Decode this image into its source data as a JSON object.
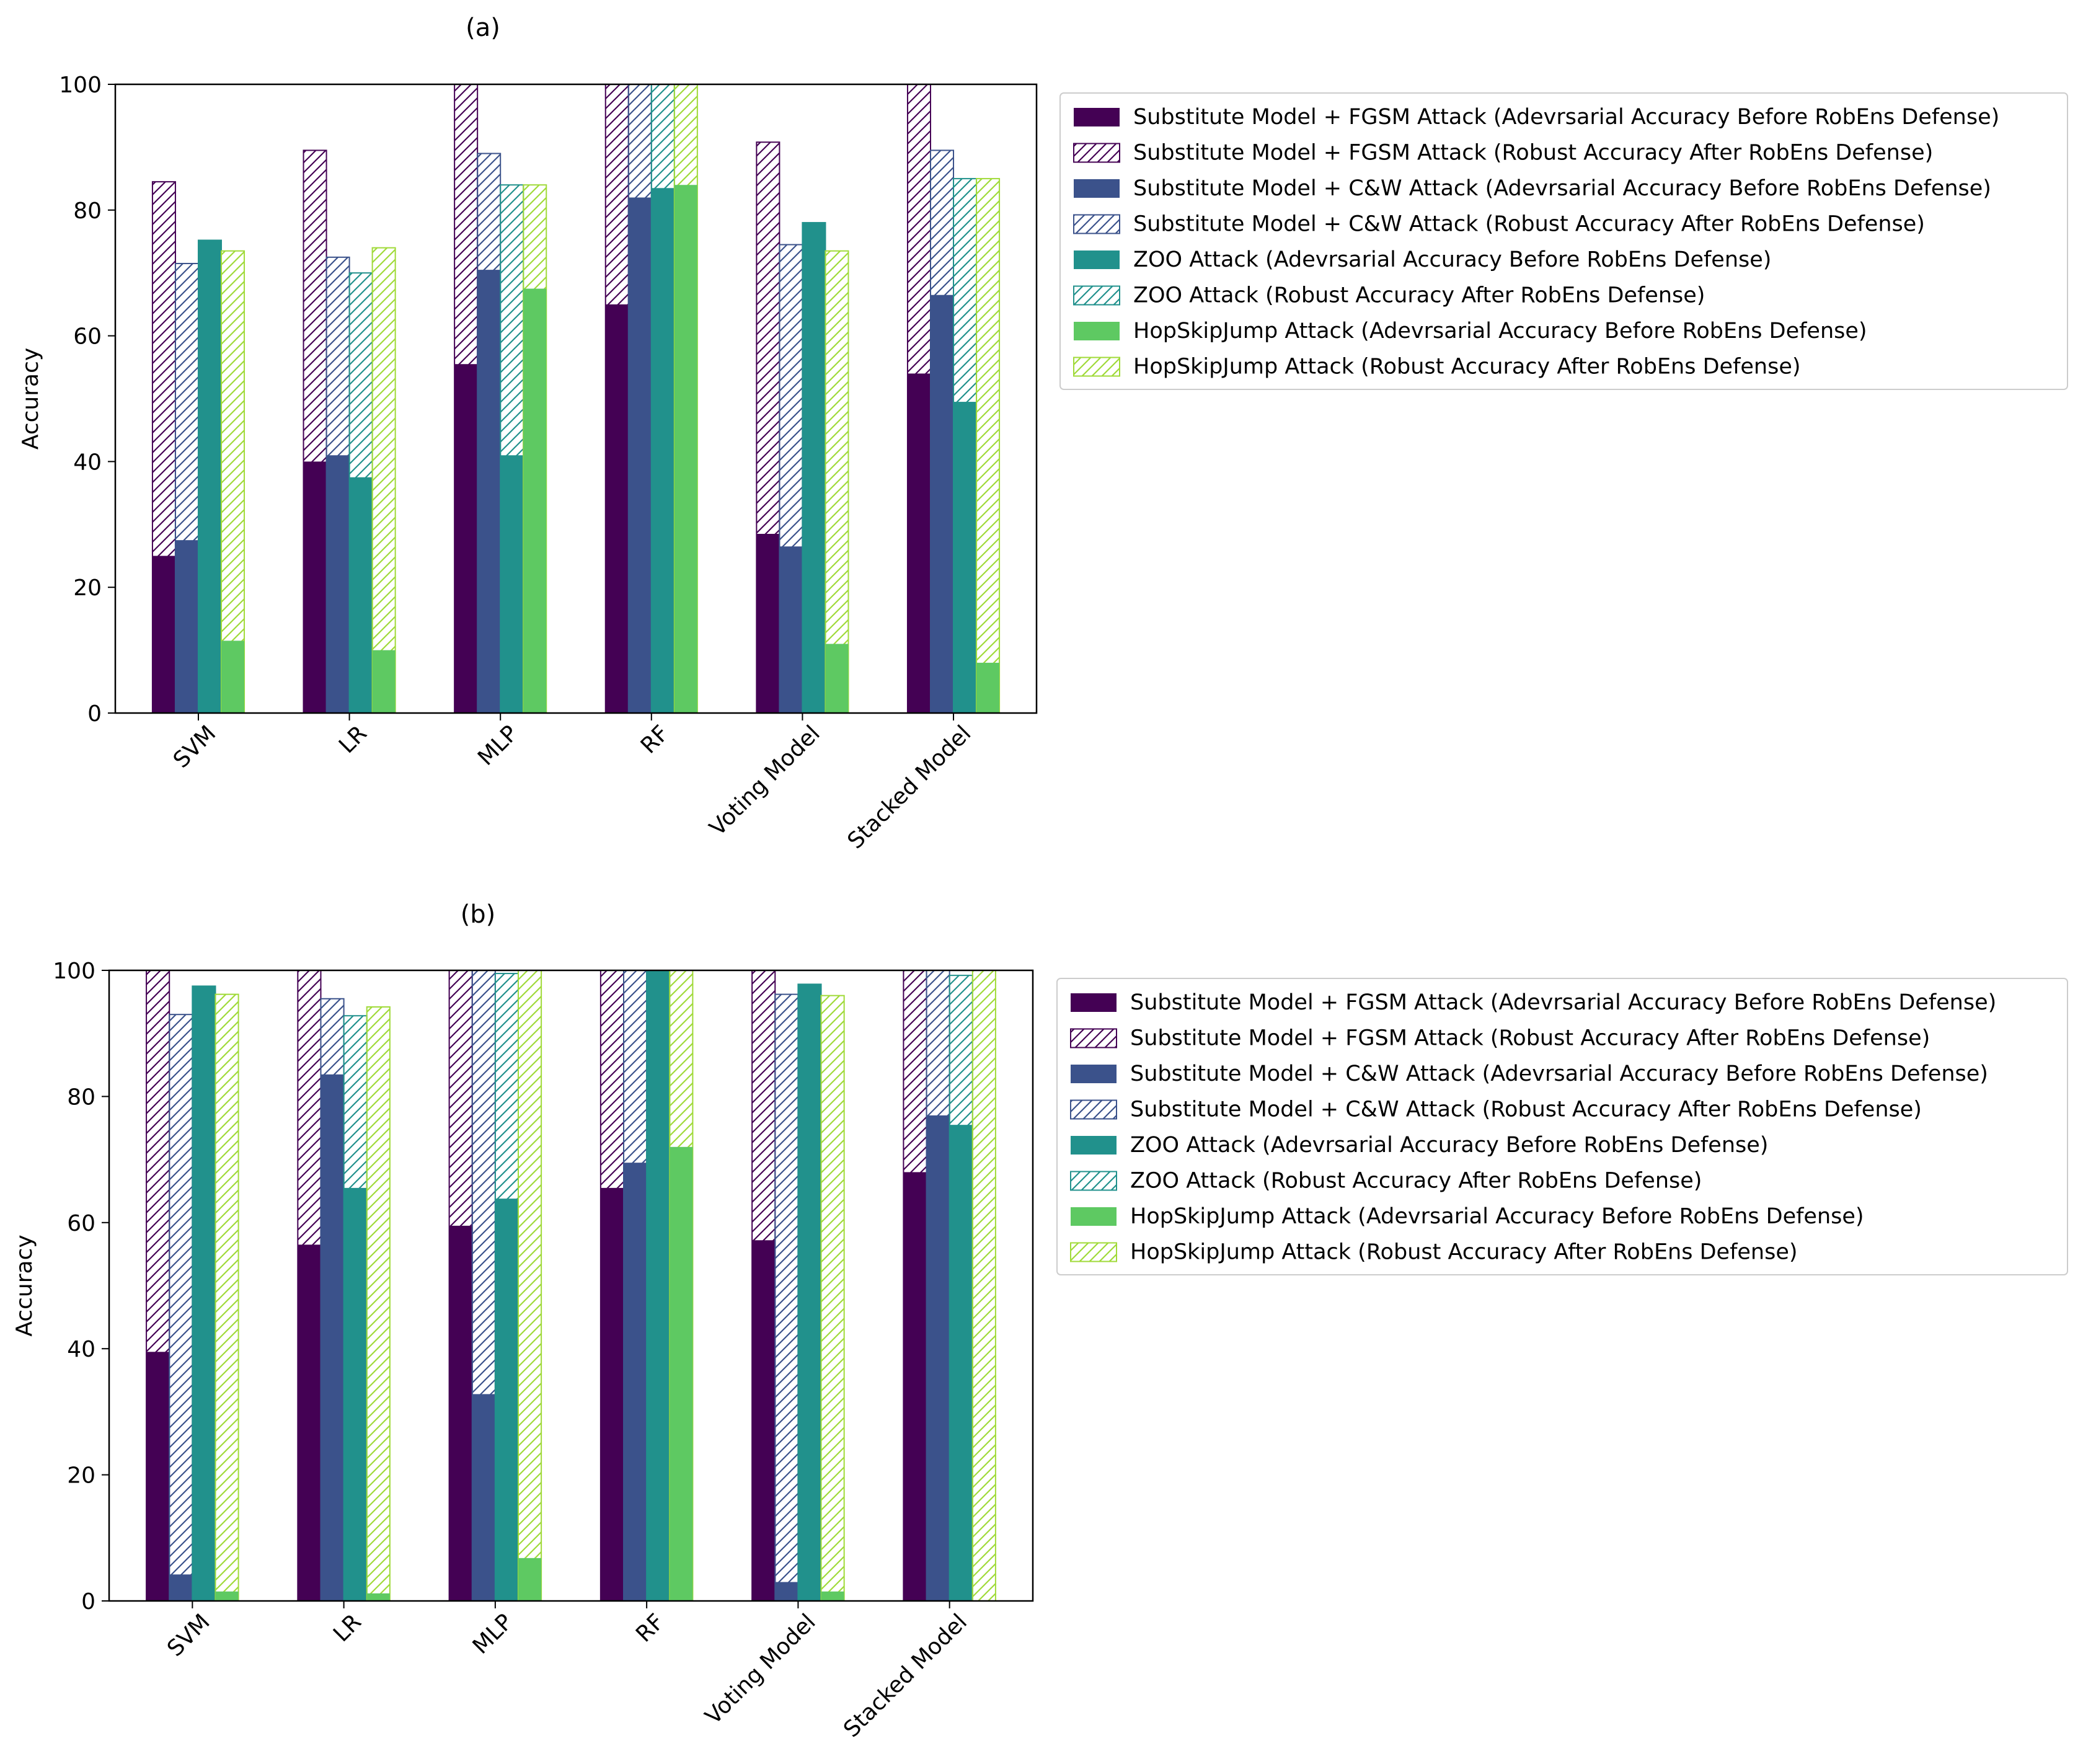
{
  "colors": {
    "fgsm": "#440154",
    "cw": "#3b528b",
    "zoo": "#21918c",
    "hsj": "#5ec962",
    "hatch_hsj": "#a0da39"
  },
  "legend": [
    "Substitute Model + FGSM Attack (Adevrsarial Accuracy Before RobEns Defense)",
    "Substitute Model + FGSM Attack (Robust Accuracy After RobEns Defense)",
    "Substitute Model + C&W Attack (Adevrsarial Accuracy Before RobEns Defense)",
    "Substitute Model + C&W Attack (Robust Accuracy After RobEns Defense)",
    "ZOO Attack (Adevrsarial Accuracy Before RobEns Defense)",
    "ZOO Attack (Robust Accuracy After RobEns Defense)",
    "HopSkipJump Attack (Adevrsarial Accuracy Before RobEns Defense)",
    "HopSkipJump Attack (Robust Accuracy After RobEns Defense)"
  ],
  "chart_data": [
    {
      "type": "bar",
      "title": "(a)",
      "ylabel": "Accuracy",
      "xlabel": "",
      "ylim": [
        0,
        100
      ],
      "yticks": [
        "0",
        "20",
        "40",
        "60",
        "80",
        "100"
      ],
      "categories": [
        "SVM",
        "LR",
        "MLP",
        "RF",
        "Voting Model",
        "Stacked Model"
      ],
      "series": [
        {
          "name": "Substitute Model + FGSM Attack (Adevrsarial Accuracy Before RobEns Defense)",
          "values": [
            25,
            40,
            55.5,
            65,
            28.5,
            54
          ]
        },
        {
          "name": "Substitute Model + FGSM Attack (Robust Accuracy After RobEns Defense)",
          "values": [
            84.5,
            89.5,
            100,
            100,
            90.8,
            100
          ]
        },
        {
          "name": "Substitute Model + C&W Attack (Adevrsarial Accuracy Before RobEns Defense)",
          "values": [
            27.5,
            41,
            70.5,
            82,
            26.5,
            66.5
          ]
        },
        {
          "name": "Substitute Model + C&W Attack (Robust Accuracy After RobEns Defense)",
          "values": [
            71.5,
            72.5,
            89,
            100,
            74.5,
            89.5
          ]
        },
        {
          "name": "ZOO Attack (Adevrsarial Accuracy Before RobEns Defense)",
          "values": [
            75.2,
            37.5,
            41,
            83.5,
            78,
            49.5
          ]
        },
        {
          "name": "ZOO Attack (Robust Accuracy After RobEns Defense)",
          "values": [
            75.2,
            70,
            84,
            100,
            78,
            85
          ]
        },
        {
          "name": "HopSkipJump Attack (Adevrsarial Accuracy Before RobEns Defense)",
          "values": [
            11.5,
            10,
            67.5,
            84,
            11,
            8
          ]
        },
        {
          "name": "HopSkipJump Attack (Robust Accuracy After RobEns Defense)",
          "values": [
            73.5,
            74,
            84,
            100,
            73.5,
            85
          ]
        }
      ]
    },
    {
      "type": "bar",
      "title": "(b)",
      "ylabel": "Accuracy",
      "xlabel": "",
      "ylim": [
        0,
        100
      ],
      "yticks": [
        "0",
        "20",
        "40",
        "60",
        "80",
        "100"
      ],
      "categories": [
        "SVM",
        "LR",
        "MLP",
        "RF",
        "Voting Model",
        "Stacked Model"
      ],
      "series": [
        {
          "name": "Substitute Model + FGSM Attack (Adevrsarial Accuracy Before RobEns Defense)",
          "values": [
            39.5,
            56.5,
            59.5,
            65.5,
            57.2,
            68
          ]
        },
        {
          "name": "Substitute Model + FGSM Attack (Robust Accuracy After RobEns Defense)",
          "values": [
            100,
            100,
            100,
            100,
            100,
            100
          ]
        },
        {
          "name": "Substitute Model + C&W Attack (Adevrsarial Accuracy Before RobEns Defense)",
          "values": [
            4.2,
            83.5,
            32.8,
            69.5,
            3,
            77
          ]
        },
        {
          "name": "Substitute Model + C&W Attack (Robust Accuracy After RobEns Defense)",
          "values": [
            93,
            95.5,
            100,
            100,
            96.2,
            100
          ]
        },
        {
          "name": "ZOO Attack (Adevrsarial Accuracy Before RobEns Defense)",
          "values": [
            97.5,
            65.5,
            63.8,
            100,
            97.8,
            75.5
          ]
        },
        {
          "name": "ZOO Attack (Robust Accuracy After RobEns Defense)",
          "values": [
            97.5,
            92.8,
            99.5,
            100,
            97.8,
            99.2
          ]
        },
        {
          "name": "HopSkipJump Attack (Adevrsarial Accuracy Before RobEns Defense)",
          "values": [
            1.5,
            1.2,
            6.8,
            72,
            1.5,
            0
          ]
        },
        {
          "name": "HopSkipJump Attack (Robust Accuracy After RobEns Defense)",
          "values": [
            96.2,
            94.2,
            100,
            100,
            96,
            100
          ]
        }
      ]
    }
  ]
}
